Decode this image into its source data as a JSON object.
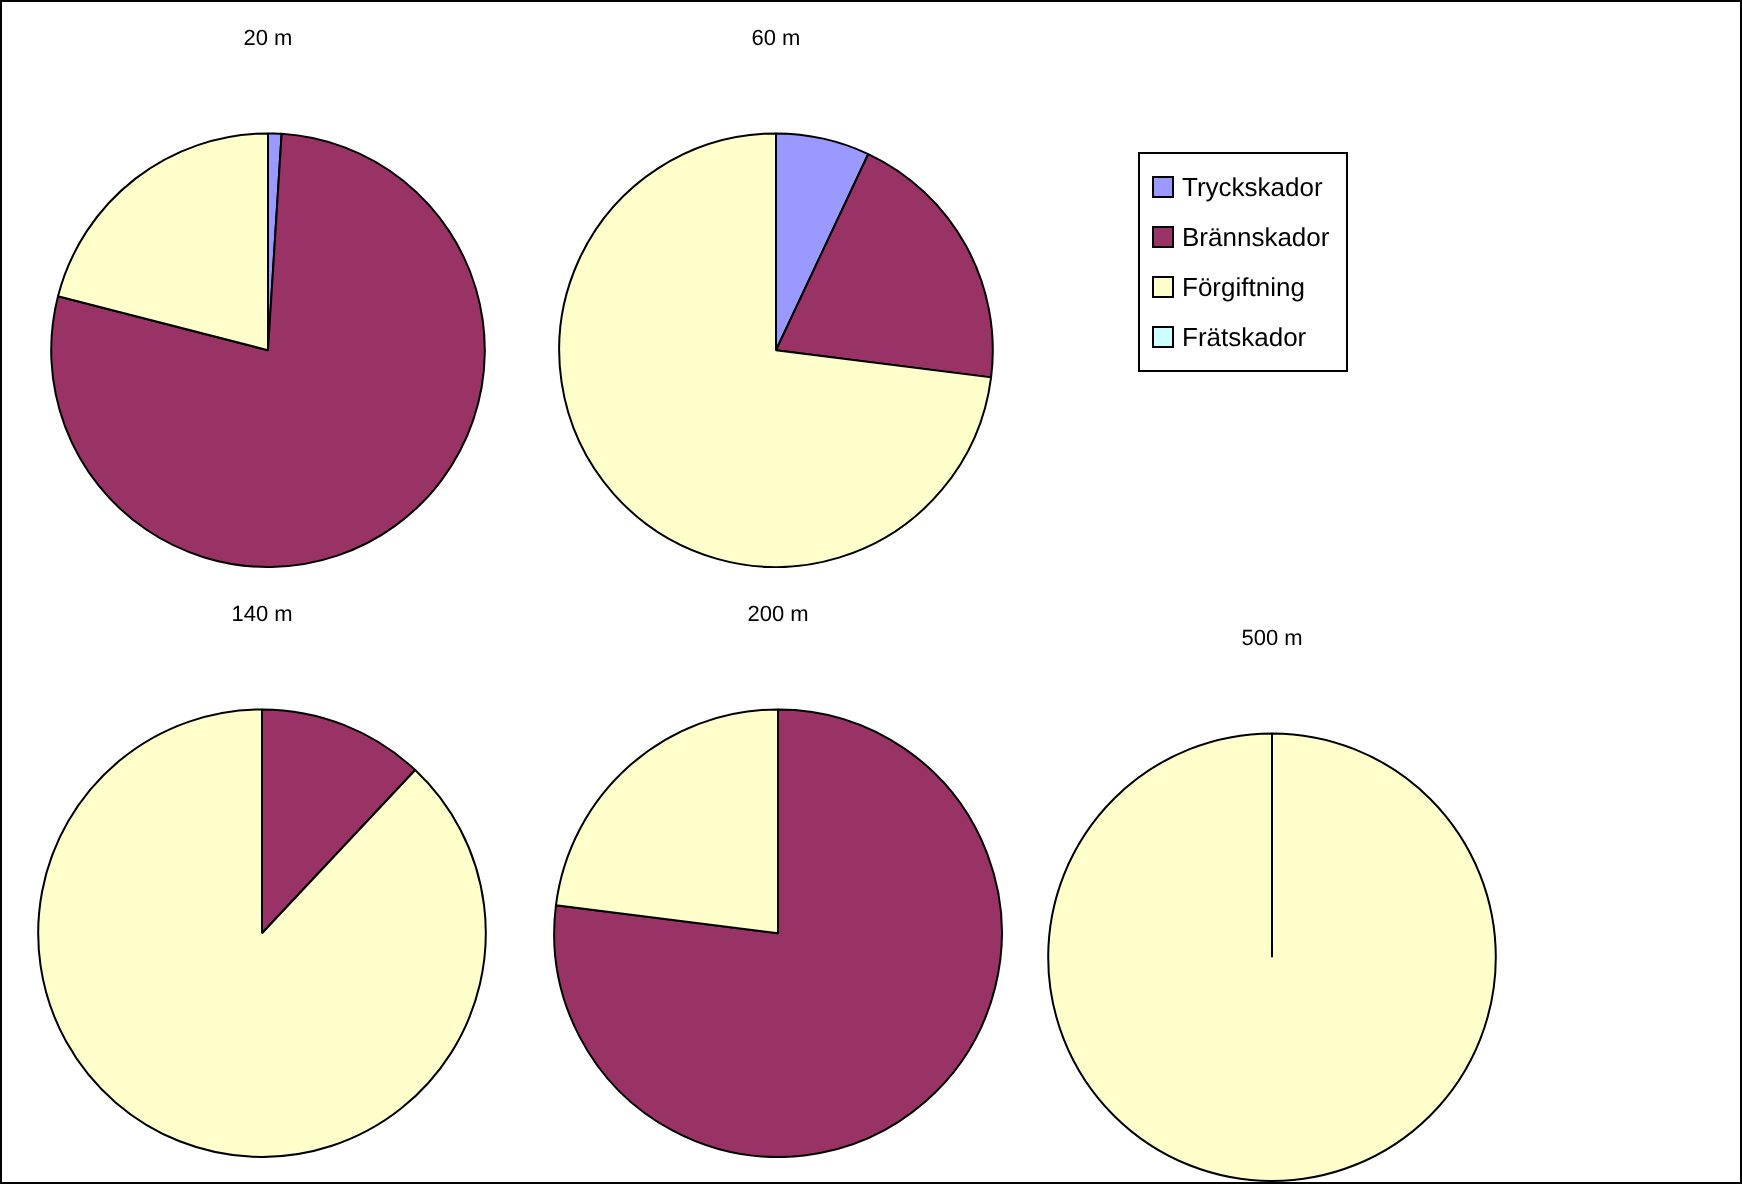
{
  "chart_data": [
    {
      "type": "pie",
      "title": "20 m",
      "categories": [
        null,
        null,
        null,
        null
      ],
      "values": [
        1,
        78,
        21,
        0
      ],
      "colors": [
        "#9999ff",
        "#993366",
        "#ffffcc",
        "#ccffff"
      ]
    },
    {
      "type": "pie",
      "title": "60 m",
      "categories": [
        "Tryckskador",
        "Brännskador",
        "Förgiftning",
        "Frätskador"
      ],
      "values": [
        7,
        20,
        73,
        0
      ],
      "colors": [
        "#9999ff",
        "#993366",
        "#ffffcc",
        "#ccffff"
      ],
      "legend": "right"
    },
    {
      "type": "pie",
      "title": "140 m",
      "categories": [
        null,
        null,
        null,
        null
      ],
      "values": [
        0,
        12,
        88,
        0
      ],
      "colors": [
        "#9999ff",
        "#993366",
        "#ffffcc",
        "#ccffff"
      ]
    },
    {
      "type": "pie",
      "title": "200 m",
      "categories": [
        null,
        null,
        null,
        null
      ],
      "values": [
        0,
        77,
        23,
        0
      ],
      "colors": [
        "#9999ff",
        "#993366",
        "#ffffcc",
        "#ccffff"
      ]
    },
    {
      "type": "pie",
      "title": "500 m",
      "categories": [
        null,
        null,
        null,
        null
      ],
      "values": [
        0,
        0,
        100,
        0
      ],
      "colors": [
        "#9999ff",
        "#993366",
        "#ffffcc",
        "#ccffff"
      ]
    }
  ]
}
